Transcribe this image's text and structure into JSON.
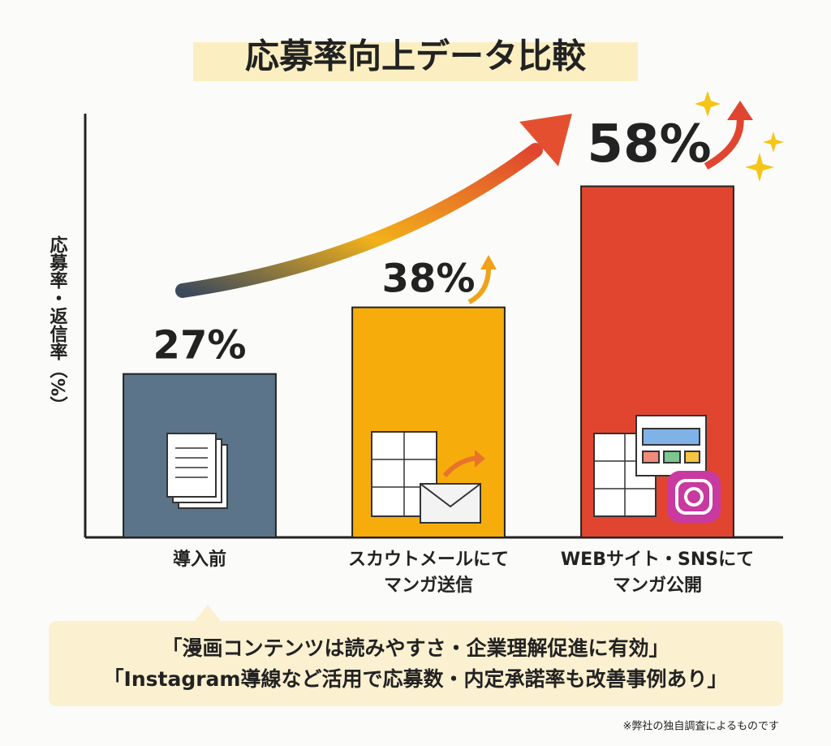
{
  "chart_data": {
    "type": "bar",
    "title": "応募率向上データ比較",
    "y_label": "応募率・返信率（%）",
    "categories": [
      "導入前",
      "スカウトメールにて\nマンガ送信",
      "WEBサイト・SNSにて\nマンガ公開"
    ],
    "values": [
      27,
      38,
      58
    ],
    "value_labels": [
      "27%",
      "38%",
      "58%"
    ],
    "colors": [
      "#5b7489",
      "#f6ad0b",
      "#e2452f"
    ],
    "ylim": [
      0,
      70
    ]
  },
  "callout": [
    "「漫画コンテンツは読みやすさ・企業理解促進に有効」",
    "「Instagram導線など活用で応募数・内定承諾率も改善事例あり」"
  ],
  "footnote": "※弊社の独自調査によるものです"
}
